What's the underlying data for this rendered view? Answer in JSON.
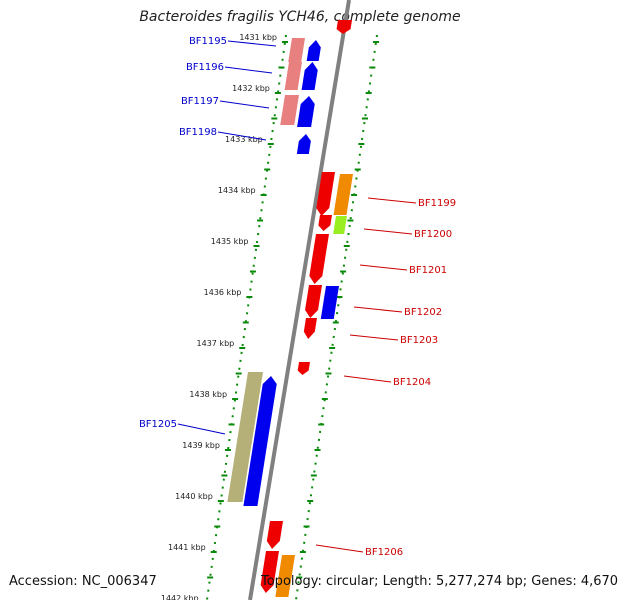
{
  "title": "Bacteroides fragilis YCH46, complete genome",
  "footer": {
    "accession": "Accession: NC_006347",
    "topology": "Topology: circular; Length: 5,277,274 bp; Genes: 4,670"
  },
  "ticks": [
    {
      "label": "1431 kbp",
      "kbp": 1431
    },
    {
      "label": "1432 kbp",
      "kbp": 1432
    },
    {
      "label": "1433 kbp",
      "kbp": 1433
    },
    {
      "label": "1434 kbp",
      "kbp": 1434
    },
    {
      "label": "1435 kbp",
      "kbp": 1435
    },
    {
      "label": "1436 kbp",
      "kbp": 1436
    },
    {
      "label": "1437 kbp",
      "kbp": 1437
    },
    {
      "label": "1438 kbp",
      "kbp": 1438
    },
    {
      "label": "1439 kbp",
      "kbp": 1439
    },
    {
      "label": "1440 kbp",
      "kbp": 1440
    },
    {
      "label": "1441 kbp",
      "kbp": 1441
    },
    {
      "label": "1442 kbp",
      "kbp": 1442
    }
  ],
  "genes_reverse": [
    {
      "label": "BF1195",
      "color": "#0000cc"
    },
    {
      "label": "BF1196",
      "color": "#0000cc"
    },
    {
      "label": "BF1197",
      "color": "#0000cc"
    },
    {
      "label": "BF1198",
      "color": "#0000cc"
    },
    {
      "label": "BF1205",
      "color": "#0000cc"
    }
  ],
  "genes_forward": [
    {
      "label": "BF1199",
      "color": "#cc0000"
    },
    {
      "label": "BF1200",
      "color": "#cc0000"
    },
    {
      "label": "BF1201",
      "color": "#cc0000"
    },
    {
      "label": "BF1202",
      "color": "#cc0000"
    },
    {
      "label": "BF1203",
      "color": "#cc0000"
    },
    {
      "label": "BF1204",
      "color": "#cc0000"
    },
    {
      "label": "BF1206",
      "color": "#cc0000"
    }
  ],
  "colors": {
    "backbone": "#808080",
    "tick": "#0a8a0a",
    "reverse_label": "#0000cc",
    "forward_label": "#cc0000",
    "blue": "#0000ee",
    "red": "#ee0000",
    "pink": "#e88080",
    "orange": "#f08a00",
    "lime": "#99ee22",
    "olive": "#b4b078"
  }
}
